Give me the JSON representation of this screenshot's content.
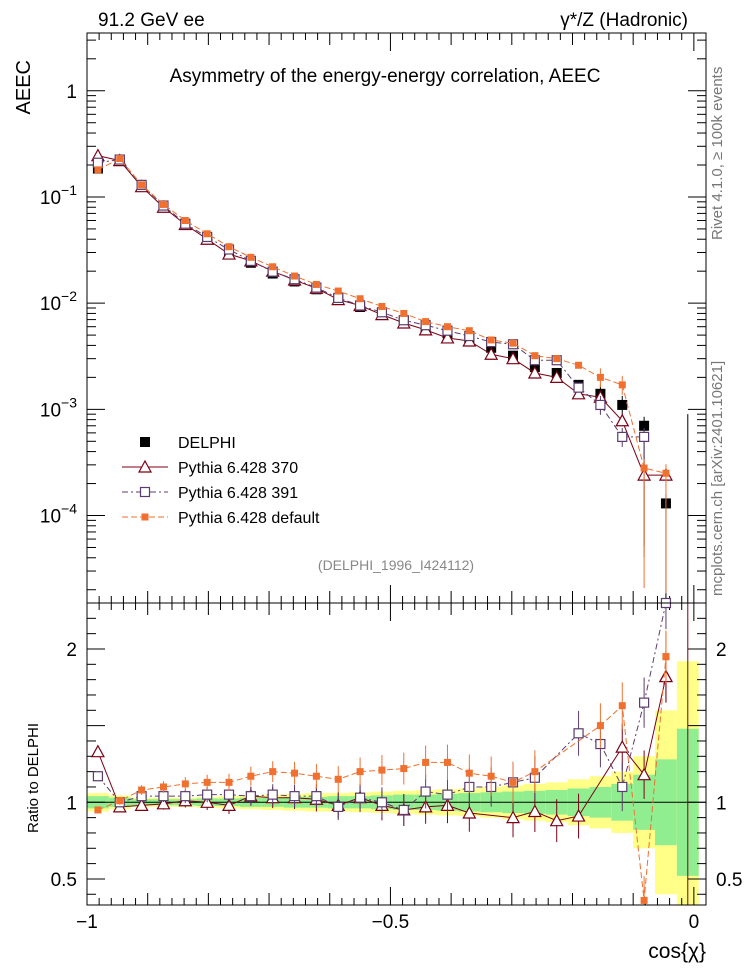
{
  "header": {
    "left": "91.2 GeV ee",
    "right": "γ*/Z (Hadronic)",
    "side_top": "Rivet 4.1.0, ≥ 100k events",
    "side_bottom": "mcplots.cern.ch [arXiv:2401.10621]"
  },
  "chart_data": {
    "type": "line",
    "title": "Asymmetry of the energy-energy correlation, AEEC",
    "ylabel": "AEEC",
    "ratio_ylabel": "Ratio to DELPHI",
    "xlabel": "cos{χ}",
    "watermark": "(DELPHI_1996_I424112)",
    "xlim": [
      -1.0,
      0.02
    ],
    "ylim": [
      1.5e-05,
      3.5
    ],
    "ratio_ylim": [
      0.33,
      2.3
    ],
    "yscale": "log",
    "x_ticks": [
      {
        "value": -1.0,
        "label": "−1"
      },
      {
        "value": -0.5,
        "label": "−0.5"
      },
      {
        "value": 0.0,
        "label": "0"
      }
    ],
    "y_ticks": [
      {
        "value": 1,
        "label": "1"
      },
      {
        "value": 0.1,
        "label": "10^-1"
      },
      {
        "value": 0.01,
        "label": "10^-2"
      },
      {
        "value": 0.001,
        "label": "10^-3"
      },
      {
        "value": 0.0001,
        "label": "10^-4"
      }
    ],
    "ratio_ticks": [
      {
        "value": 2,
        "label": "2"
      },
      {
        "value": 1,
        "label": "1"
      },
      {
        "value": 0.5,
        "label": "0.5"
      }
    ],
    "x": [
      -0.982,
      -0.946,
      -0.91,
      -0.874,
      -0.838,
      -0.802,
      -0.766,
      -0.73,
      -0.694,
      -0.658,
      -0.622,
      -0.586,
      -0.55,
      -0.514,
      -0.478,
      -0.442,
      -0.406,
      -0.37,
      -0.334,
      -0.298,
      -0.262,
      -0.226,
      -0.19,
      -0.154,
      -0.118,
      -0.082,
      -0.046,
      -0.01
    ],
    "band_inner": [
      0.04,
      0.03,
      0.02,
      0.02,
      0.02,
      0.025,
      0.025,
      0.03,
      0.03,
      0.035,
      0.035,
      0.04,
      0.04,
      0.045,
      0.05,
      0.05,
      0.055,
      0.06,
      0.065,
      0.07,
      0.075,
      0.08,
      0.09,
      0.1,
      0.12,
      0.18,
      0.28,
      0.48
    ],
    "band_outer": [
      0.06,
      0.045,
      0.03,
      0.03,
      0.03,
      0.035,
      0.04,
      0.045,
      0.05,
      0.055,
      0.06,
      0.06,
      0.065,
      0.07,
      0.075,
      0.08,
      0.085,
      0.09,
      0.1,
      0.11,
      0.12,
      0.13,
      0.15,
      0.17,
      0.2,
      0.3,
      0.6,
      0.92
    ],
    "series": [
      {
        "name": "DELPHI",
        "color": "#000000",
        "values": [
          0.185,
          0.225,
          0.125,
          0.08,
          0.055,
          0.04,
          0.03,
          0.024,
          0.019,
          0.016,
          0.0135,
          0.011,
          0.0092,
          0.008,
          0.0068,
          0.0058,
          0.0052,
          0.0047,
          0.0038,
          0.0032,
          0.0025,
          0.0022,
          0.0017,
          0.0014,
          0.0011,
          0.0007,
          0.00013,
          0.0
        ]
      },
      {
        "name": "Pythia 6.428 370",
        "color": "#7b0014",
        "values": [
          0.245,
          0.22,
          0.125,
          0.08,
          0.055,
          0.04,
          0.029,
          0.025,
          0.02,
          0.0165,
          0.0138,
          0.0108,
          0.0095,
          0.0078,
          0.0065,
          0.0056,
          0.0047,
          0.0044,
          0.0033,
          0.003,
          0.0022,
          0.002,
          0.0014,
          0.0013,
          0.00078,
          0.00024,
          0.00024,
          0.0
        ],
        "ratio": [
          1.33,
          0.97,
          0.98,
          0.99,
          1.01,
          1.0,
          0.98,
          1.04,
          1.03,
          1.03,
          1.02,
          0.98,
          1.03,
          0.98,
          0.95,
          0.97,
          0.98,
          0.93,
          0.9,
          0.94,
          0.88,
          0.91,
          1.36,
          1.18,
          1.82,
          1.82,
          null,
          null
        ],
        "ratio_x": [
          -0.982,
          -0.946,
          -0.91,
          -0.874,
          -0.838,
          -0.802,
          -0.766,
          -0.73,
          -0.694,
          -0.658,
          -0.622,
          -0.586,
          -0.55,
          -0.514,
          -0.478,
          -0.442,
          -0.406,
          -0.37,
          -0.298,
          -0.262,
          -0.226,
          -0.19,
          -0.118,
          -0.082,
          -0.046,
          -0.046,
          null,
          null
        ]
      },
      {
        "name": "Pythia 6.428 391",
        "color": "#5a3c6e",
        "values": [
          0.21,
          0.225,
          0.13,
          0.083,
          0.056,
          0.042,
          0.032,
          0.025,
          0.0198,
          0.0168,
          0.014,
          0.0112,
          0.0095,
          0.0082,
          0.0069,
          0.0062,
          0.0055,
          0.0049,
          0.0043,
          0.0041,
          0.0029,
          0.0029,
          0.0016,
          0.0011,
          0.00055,
          0.00055,
          0.0,
          0.0
        ],
        "ratio": [
          1.17,
          1.0,
          1.04,
          1.04,
          1.04,
          1.05,
          1.05,
          1.04,
          1.05,
          1.04,
          1.04,
          0.97,
          1.03,
          1.0,
          0.95,
          1.07,
          1.05,
          1.1,
          1.1,
          1.13,
          1.16,
          1.45,
          1.38,
          1.1,
          1.65,
          2.3,
          null,
          null
        ],
        "ratio_x": [
          -0.982,
          -0.946,
          -0.91,
          -0.874,
          -0.838,
          -0.802,
          -0.766,
          -0.73,
          -0.694,
          -0.658,
          -0.622,
          -0.586,
          -0.55,
          -0.514,
          -0.478,
          -0.442,
          -0.406,
          -0.37,
          -0.334,
          -0.298,
          -0.262,
          -0.19,
          -0.154,
          -0.118,
          -0.082,
          -0.046,
          null,
          null
        ]
      },
      {
        "name": "Pythia 6.428 default",
        "color": "#f07030",
        "values": [
          0.18,
          0.23,
          0.13,
          0.085,
          0.06,
          0.045,
          0.034,
          0.027,
          0.022,
          0.018,
          0.015,
          0.013,
          0.011,
          0.0093,
          0.008,
          0.0067,
          0.006,
          0.0055,
          0.0045,
          0.0042,
          0.0032,
          0.003,
          0.0026,
          0.002,
          0.0017,
          0.00028,
          0.00025,
          0.0
        ],
        "ratio": [
          0.95,
          1.01,
          1.08,
          1.1,
          1.12,
          1.13,
          1.13,
          1.17,
          1.2,
          1.19,
          1.17,
          1.15,
          1.2,
          1.21,
          1.22,
          1.26,
          1.26,
          1.19,
          1.17,
          1.13,
          1.2,
          1.5,
          1.63,
          0.36,
          1.95,
          1.95,
          null,
          null
        ],
        "ratio_x": [
          -0.982,
          -0.946,
          -0.91,
          -0.874,
          -0.838,
          -0.802,
          -0.766,
          -0.73,
          -0.694,
          -0.658,
          -0.622,
          -0.586,
          -0.55,
          -0.514,
          -0.478,
          -0.442,
          -0.406,
          -0.37,
          -0.334,
          -0.298,
          -0.262,
          -0.154,
          -0.118,
          -0.082,
          -0.046,
          -0.046,
          null,
          null
        ]
      }
    ],
    "legend_position": "lower-left"
  }
}
